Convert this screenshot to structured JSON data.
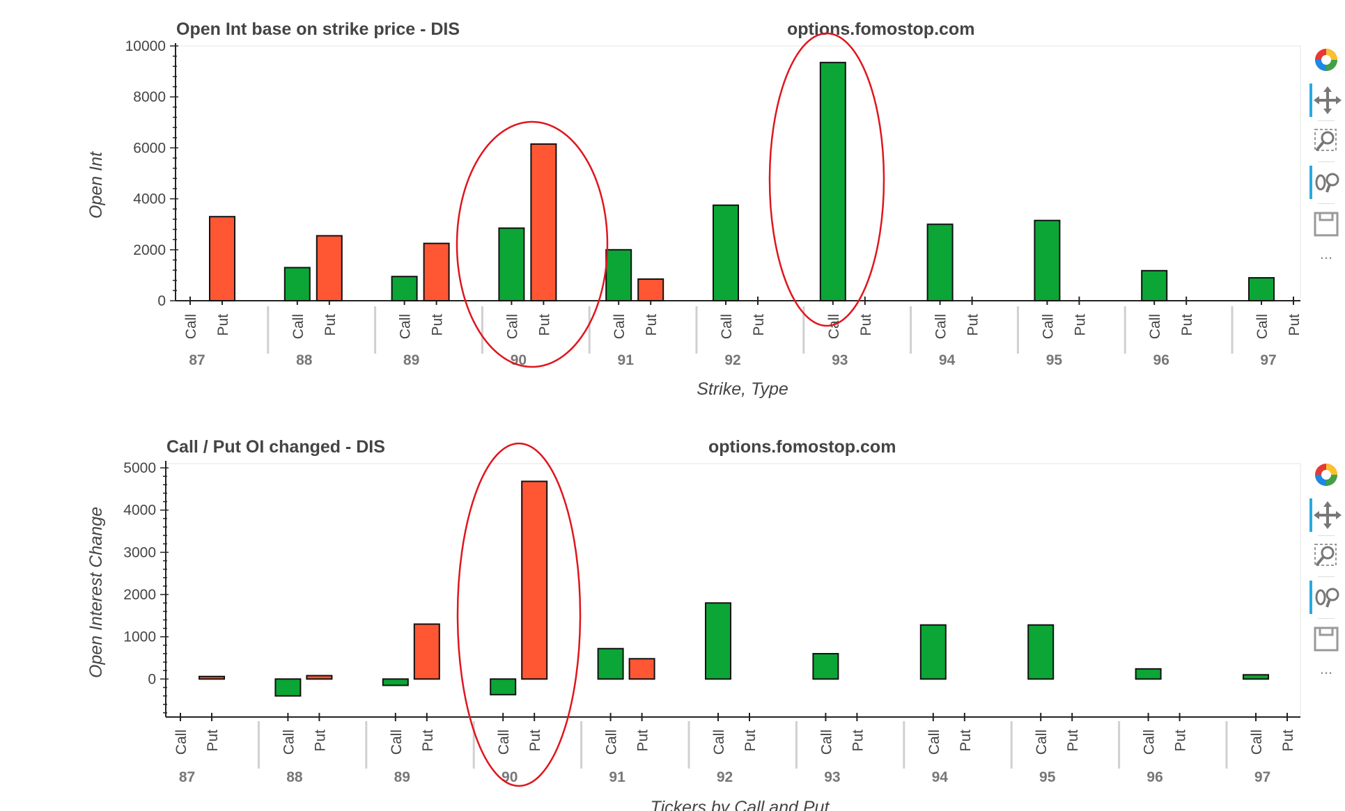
{
  "chart_data": [
    {
      "type": "bar",
      "title": "Open Int base on strike price - DIS",
      "watermark": "options.fomostop.com",
      "xlabel": "Strike, Type",
      "ylabel": "Open Int",
      "ylim": [
        0,
        10000
      ],
      "yticks": [
        0,
        2000,
        4000,
        6000,
        8000,
        10000
      ],
      "strikes": [
        "87",
        "88",
        "89",
        "90",
        "91",
        "92",
        "93",
        "94",
        "95",
        "96",
        "97"
      ],
      "types": [
        "Call",
        "Put"
      ],
      "series": [
        {
          "name": "Call",
          "color": "#0ba636",
          "values": [
            0,
            1300,
            950,
            2850,
            2000,
            3750,
            9350,
            3000,
            3150,
            1180,
            900
          ]
        },
        {
          "name": "Put",
          "color": "#ff5733",
          "values": [
            3300,
            2550,
            2250,
            6150,
            850,
            0,
            0,
            0,
            0,
            0,
            0
          ]
        }
      ],
      "highlighted": [
        "90",
        "93"
      ]
    },
    {
      "type": "bar",
      "title": "Call / Put OI changed - DIS",
      "watermark": "options.fomostop.com",
      "xlabel": "Tickers by Call and Put",
      "ylabel": "Open Interest Change",
      "ylim": [
        -900,
        5100
      ],
      "yticks": [
        0,
        1000,
        2000,
        3000,
        4000,
        5000
      ],
      "strikes": [
        "87",
        "88",
        "89",
        "90",
        "91",
        "92",
        "93",
        "94",
        "95",
        "96",
        "97"
      ],
      "types": [
        "Call",
        "Put"
      ],
      "series": [
        {
          "name": "Call",
          "color": "#0ba636",
          "values": [
            0,
            -400,
            -150,
            -370,
            720,
            1800,
            600,
            1280,
            1280,
            240,
            100
          ]
        },
        {
          "name": "Put",
          "color": "#ff5733",
          "values": [
            60,
            80,
            1300,
            4680,
            480,
            0,
            0,
            0,
            0,
            0,
            0
          ]
        }
      ],
      "highlighted": [
        "90"
      ]
    }
  ],
  "toolbar": {
    "tools": [
      "bokeh-logo-icon",
      "pan-icon",
      "box-zoom-icon",
      "wheel-zoom-icon",
      "save-icon"
    ],
    "more": "..."
  }
}
